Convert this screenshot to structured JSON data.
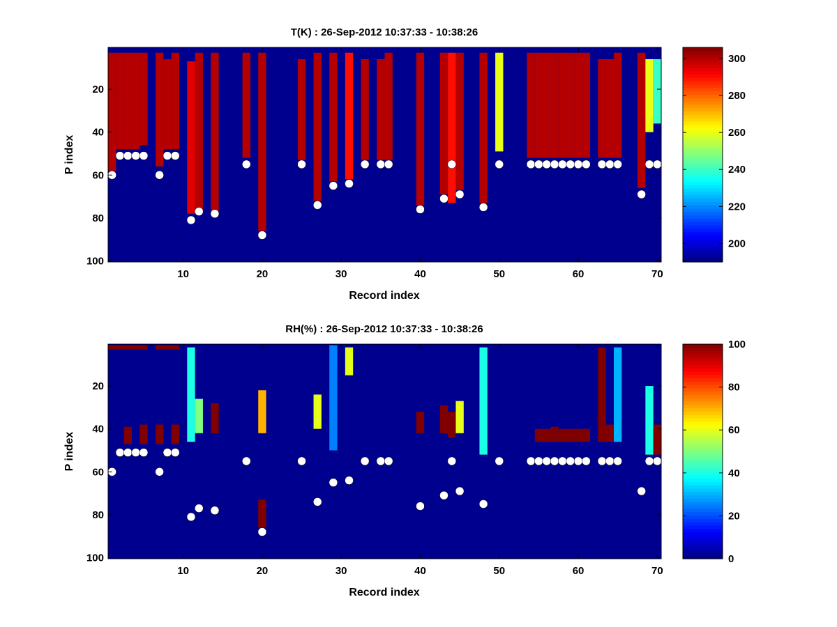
{
  "chart_data": [
    {
      "type": "heatmap",
      "title": "T(K) : 26-Sep-2012 10:37:33 - 10:38:26",
      "xlabel": "Record index",
      "ylabel": "P index",
      "xlim": [
        1,
        70
      ],
      "ylim": [
        100,
        1
      ],
      "y_direction": "reversed",
      "x_ticks": [
        10,
        20,
        30,
        40,
        50,
        60,
        70
      ],
      "y_ticks": [
        20,
        40,
        60,
        80,
        100
      ],
      "colormap": "jet",
      "background_value": 190,
      "colorbar": {
        "min": 190,
        "max": 306,
        "ticks": [
          200,
          220,
          240,
          260,
          280,
          300
        ]
      },
      "columns": [
        {
          "x": 1,
          "top": 3,
          "bottom": 58,
          "value": 300
        },
        {
          "x": 2,
          "top": 3,
          "bottom": 48,
          "value": 300
        },
        {
          "x": 3,
          "top": 3,
          "bottom": 48,
          "value": 300
        },
        {
          "x": 4,
          "top": 3,
          "bottom": 48,
          "value": 300
        },
        {
          "x": 5,
          "top": 3,
          "bottom": 46,
          "value": 300
        },
        {
          "x": 7,
          "top": 3,
          "bottom": 56,
          "value": 300
        },
        {
          "x": 8,
          "top": 6,
          "bottom": 48,
          "value": 300
        },
        {
          "x": 9,
          "top": 3,
          "bottom": 48,
          "value": 300
        },
        {
          "x": 11,
          "top": 7,
          "bottom": 78,
          "value": 295
        },
        {
          "x": 12,
          "top": 3,
          "bottom": 76,
          "value": 300
        },
        {
          "x": 14,
          "top": 3,
          "bottom": 77,
          "value": 300
        },
        {
          "x": 18,
          "top": 3,
          "bottom": 52,
          "value": 300
        },
        {
          "x": 20,
          "top": 3,
          "bottom": 86,
          "value": 300
        },
        {
          "x": 25,
          "top": 6,
          "bottom": 53,
          "value": 300
        },
        {
          "x": 27,
          "top": 3,
          "bottom": 72,
          "value": 300
        },
        {
          "x": 29,
          "top": 3,
          "bottom": 63,
          "value": 300
        },
        {
          "x": 31,
          "top": 3,
          "bottom": 62,
          "value": 290
        },
        {
          "x": 33,
          "top": 6,
          "bottom": 53,
          "value": 300
        },
        {
          "x": 35,
          "top": 6,
          "bottom": 53,
          "value": 300
        },
        {
          "x": 36,
          "top": 3,
          "bottom": 53,
          "value": 300
        },
        {
          "x": 40,
          "top": 3,
          "bottom": 74,
          "value": 300
        },
        {
          "x": 43,
          "top": 3,
          "bottom": 69,
          "value": 300
        },
        {
          "x": 44,
          "top": 3,
          "bottom": 73,
          "value": 290
        },
        {
          "x": 45,
          "top": 3,
          "bottom": 67,
          "value": 300
        },
        {
          "x": 48,
          "top": 3,
          "bottom": 73,
          "value": 300
        },
        {
          "x": 50,
          "top": 3,
          "bottom": 49,
          "value": 260
        },
        {
          "x": 54,
          "top": 3,
          "bottom": 52,
          "value": 300
        },
        {
          "x": 55,
          "top": 3,
          "bottom": 52,
          "value": 300
        },
        {
          "x": 56,
          "top": 3,
          "bottom": 52,
          "value": 300
        },
        {
          "x": 57,
          "top": 3,
          "bottom": 52,
          "value": 300
        },
        {
          "x": 58,
          "top": 3,
          "bottom": 52,
          "value": 300
        },
        {
          "x": 59,
          "top": 3,
          "bottom": 52,
          "value": 300
        },
        {
          "x": 60,
          "top": 3,
          "bottom": 52,
          "value": 300
        },
        {
          "x": 61,
          "top": 3,
          "bottom": 52,
          "value": 300
        },
        {
          "x": 63,
          "top": 6,
          "bottom": 52,
          "value": 300
        },
        {
          "x": 64,
          "top": 6,
          "bottom": 52,
          "value": 300
        },
        {
          "x": 65,
          "top": 3,
          "bottom": 52,
          "value": 300
        },
        {
          "x": 68,
          "top": 3,
          "bottom": 66,
          "value": 300
        },
        {
          "x": 69,
          "top": 6,
          "bottom": 40,
          "value": 260
        },
        {
          "x": 70,
          "top": 6,
          "bottom": 36,
          "value": 240
        }
      ],
      "markers": [
        {
          "x": 1,
          "y": 60
        },
        {
          "x": 2,
          "y": 51
        },
        {
          "x": 3,
          "y": 51
        },
        {
          "x": 4,
          "y": 51
        },
        {
          "x": 5,
          "y": 51
        },
        {
          "x": 7,
          "y": 60
        },
        {
          "x": 8,
          "y": 51
        },
        {
          "x": 9,
          "y": 51
        },
        {
          "x": 11,
          "y": 81
        },
        {
          "x": 12,
          "y": 77
        },
        {
          "x": 14,
          "y": 78
        },
        {
          "x": 18,
          "y": 55
        },
        {
          "x": 20,
          "y": 88
        },
        {
          "x": 25,
          "y": 55
        },
        {
          "x": 27,
          "y": 74
        },
        {
          "x": 29,
          "y": 65
        },
        {
          "x": 31,
          "y": 64
        },
        {
          "x": 33,
          "y": 55
        },
        {
          "x": 35,
          "y": 55
        },
        {
          "x": 36,
          "y": 55
        },
        {
          "x": 40,
          "y": 76
        },
        {
          "x": 43,
          "y": 71
        },
        {
          "x": 44,
          "y": 55
        },
        {
          "x": 45,
          "y": 69
        },
        {
          "x": 48,
          "y": 75
        },
        {
          "x": 50,
          "y": 55
        },
        {
          "x": 54,
          "y": 55
        },
        {
          "x": 55,
          "y": 55
        },
        {
          "x": 56,
          "y": 55
        },
        {
          "x": 57,
          "y": 55
        },
        {
          "x": 58,
          "y": 55
        },
        {
          "x": 59,
          "y": 55
        },
        {
          "x": 60,
          "y": 55
        },
        {
          "x": 61,
          "y": 55
        },
        {
          "x": 63,
          "y": 55
        },
        {
          "x": 64,
          "y": 55
        },
        {
          "x": 65,
          "y": 55
        },
        {
          "x": 68,
          "y": 69
        },
        {
          "x": 69,
          "y": 55
        },
        {
          "x": 70,
          "y": 55
        }
      ]
    },
    {
      "type": "heatmap",
      "title": "RH(%) : 26-Sep-2012 10:37:33 - 10:38:26",
      "xlabel": "Record index",
      "ylabel": "P index",
      "xlim": [
        1,
        70
      ],
      "ylim": [
        100,
        1
      ],
      "y_direction": "reversed",
      "x_ticks": [
        10,
        20,
        30,
        40,
        50,
        60,
        70
      ],
      "y_ticks": [
        20,
        40,
        60,
        80,
        100
      ],
      "colormap": "jet",
      "background_value": 0,
      "colorbar": {
        "min": 0,
        "max": 100,
        "ticks": [
          0,
          20,
          40,
          60,
          80,
          100
        ]
      },
      "columns": [
        {
          "x": 1,
          "top": 1,
          "bottom": 3,
          "value": 100
        },
        {
          "x": 2,
          "top": 1,
          "bottom": 3,
          "value": 100
        },
        {
          "x": 3,
          "top": 1,
          "bottom": 3,
          "value": 100
        },
        {
          "x": 4,
          "top": 1,
          "bottom": 3,
          "value": 100
        },
        {
          "x": 5,
          "top": 1,
          "bottom": 3,
          "value": 100
        },
        {
          "x": 7,
          "top": 1,
          "bottom": 3,
          "value": 100
        },
        {
          "x": 8,
          "top": 1,
          "bottom": 3,
          "value": 100
        },
        {
          "x": 9,
          "top": 1,
          "bottom": 3,
          "value": 100
        },
        {
          "x": 3,
          "top": 39,
          "bottom": 47,
          "value": 100
        },
        {
          "x": 5,
          "top": 38,
          "bottom": 47,
          "value": 100
        },
        {
          "x": 7,
          "top": 38,
          "bottom": 47,
          "value": 100
        },
        {
          "x": 9,
          "top": 38,
          "bottom": 47,
          "value": 100
        },
        {
          "x": 11,
          "top": 2,
          "bottom": 46,
          "value": 40
        },
        {
          "x": 12,
          "top": 26,
          "bottom": 42,
          "value": 50
        },
        {
          "x": 14,
          "top": 28,
          "bottom": 42,
          "value": 100
        },
        {
          "x": 20,
          "top": 22,
          "bottom": 42,
          "value": 70
        },
        {
          "x": 20,
          "top": 73,
          "bottom": 86,
          "value": 100
        },
        {
          "x": 27,
          "top": 24,
          "bottom": 40,
          "value": 60
        },
        {
          "x": 29,
          "top": 1,
          "bottom": 50,
          "value": 25
        },
        {
          "x": 31,
          "top": 2,
          "bottom": 15,
          "value": 60
        },
        {
          "x": 40,
          "top": 32,
          "bottom": 42,
          "value": 100
        },
        {
          "x": 43,
          "top": 29,
          "bottom": 42,
          "value": 100
        },
        {
          "x": 44,
          "top": 32,
          "bottom": 44,
          "value": 100
        },
        {
          "x": 45,
          "top": 27,
          "bottom": 42,
          "value": 60
        },
        {
          "x": 48,
          "top": 2,
          "bottom": 52,
          "value": 40
        },
        {
          "x": 55,
          "top": 40,
          "bottom": 46,
          "value": 100
        },
        {
          "x": 56,
          "top": 40,
          "bottom": 46,
          "value": 100
        },
        {
          "x": 57,
          "top": 39,
          "bottom": 46,
          "value": 100
        },
        {
          "x": 58,
          "top": 40,
          "bottom": 46,
          "value": 100
        },
        {
          "x": 59,
          "top": 40,
          "bottom": 46,
          "value": 100
        },
        {
          "x": 60,
          "top": 40,
          "bottom": 46,
          "value": 100
        },
        {
          "x": 61,
          "top": 40,
          "bottom": 46,
          "value": 100
        },
        {
          "x": 63,
          "top": 2,
          "bottom": 46,
          "value": 100
        },
        {
          "x": 64,
          "top": 38,
          "bottom": 46,
          "value": 100
        },
        {
          "x": 65,
          "top": 2,
          "bottom": 46,
          "value": 30
        },
        {
          "x": 69,
          "top": 20,
          "bottom": 52,
          "value": 40
        },
        {
          "x": 70,
          "top": 38,
          "bottom": 52,
          "value": 100
        }
      ],
      "markers": [
        {
          "x": 1,
          "y": 60
        },
        {
          "x": 2,
          "y": 51
        },
        {
          "x": 3,
          "y": 51
        },
        {
          "x": 4,
          "y": 51
        },
        {
          "x": 5,
          "y": 51
        },
        {
          "x": 7,
          "y": 60
        },
        {
          "x": 8,
          "y": 51
        },
        {
          "x": 9,
          "y": 51
        },
        {
          "x": 11,
          "y": 81
        },
        {
          "x": 12,
          "y": 77
        },
        {
          "x": 14,
          "y": 78
        },
        {
          "x": 18,
          "y": 55
        },
        {
          "x": 20,
          "y": 88
        },
        {
          "x": 25,
          "y": 55
        },
        {
          "x": 27,
          "y": 74
        },
        {
          "x": 29,
          "y": 65
        },
        {
          "x": 31,
          "y": 64
        },
        {
          "x": 33,
          "y": 55
        },
        {
          "x": 35,
          "y": 55
        },
        {
          "x": 36,
          "y": 55
        },
        {
          "x": 40,
          "y": 76
        },
        {
          "x": 43,
          "y": 71
        },
        {
          "x": 44,
          "y": 55
        },
        {
          "x": 45,
          "y": 69
        },
        {
          "x": 48,
          "y": 75
        },
        {
          "x": 50,
          "y": 55
        },
        {
          "x": 54,
          "y": 55
        },
        {
          "x": 55,
          "y": 55
        },
        {
          "x": 56,
          "y": 55
        },
        {
          "x": 57,
          "y": 55
        },
        {
          "x": 58,
          "y": 55
        },
        {
          "x": 59,
          "y": 55
        },
        {
          "x": 60,
          "y": 55
        },
        {
          "x": 61,
          "y": 55
        },
        {
          "x": 63,
          "y": 55
        },
        {
          "x": 64,
          "y": 55
        },
        {
          "x": 65,
          "y": 55
        },
        {
          "x": 68,
          "y": 69
        },
        {
          "x": 69,
          "y": 55
        },
        {
          "x": 70,
          "y": 55
        }
      ]
    }
  ]
}
